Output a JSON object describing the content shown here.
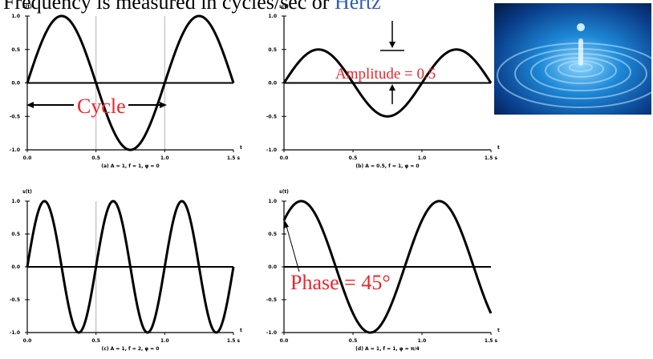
{
  "header": {
    "text_prefix": "Frequency is measured in cycles/sec or ",
    "text_hz": "Hertz"
  },
  "image": {
    "name": "water-droplet-ripples-photo"
  },
  "annotations": {
    "cycle": "Cycle",
    "amplitude": "Amplitude = 0.5",
    "phase": "Phase = 45°"
  },
  "chart_data": [
    {
      "type": "line",
      "panel": "a",
      "ylabel": "s(t)",
      "xlabel": "t",
      "caption": "(a) A = 1, f = 1, φ = 0",
      "amplitude": 1,
      "frequency": 1,
      "phase_deg": 0,
      "xlim": [
        0,
        1.5
      ],
      "ylim": [
        -1,
        1
      ],
      "xticks": [
        "0.0",
        "0.5",
        "1.0",
        "1.5 s"
      ],
      "yticks": [
        "1.0",
        "0.5",
        "0.0",
        "-0.5",
        "-1.0"
      ],
      "grid_x": [
        0.5,
        1.0
      ]
    },
    {
      "type": "line",
      "panel": "b",
      "ylabel": "s(t)",
      "xlabel": "t",
      "caption": "(b) A = 0.5, f = 1, φ = 0",
      "amplitude": 0.5,
      "frequency": 1,
      "phase_deg": 0,
      "xlim": [
        0,
        1.5
      ],
      "ylim": [
        -1,
        1
      ],
      "xticks": [
        "0.0",
        "0.5",
        "1.0",
        "1.5 s"
      ],
      "yticks": [
        "1.0",
        "0.5",
        "0.0",
        "-0.5",
        "-1.0"
      ],
      "grid_x": []
    },
    {
      "type": "line",
      "panel": "c",
      "ylabel": "s(t)",
      "xlabel": "t",
      "caption": "(c) A = 1, f = 2, φ = 0",
      "amplitude": 1,
      "frequency": 2,
      "phase_deg": 0,
      "xlim": [
        0,
        1.5
      ],
      "ylim": [
        -1,
        1
      ],
      "xticks": [
        "0.0",
        "0.5",
        "1.0",
        "1.5 s"
      ],
      "yticks": [
        "1.0",
        "0.5",
        "0.0",
        "-0.5",
        "-1.0"
      ],
      "grid_x": [
        0.5
      ]
    },
    {
      "type": "line",
      "panel": "d",
      "ylabel": "s(t)",
      "xlabel": "t",
      "caption": "(d) A = 1, f = 1, φ = π/4",
      "amplitude": 1,
      "frequency": 1,
      "phase_deg": 45,
      "xlim": [
        0,
        1.5
      ],
      "ylim": [
        -1,
        1
      ],
      "xticks": [
        "0.0",
        "0.5",
        "1.0",
        "1.5 s"
      ],
      "yticks": [
        "1.0",
        "0.5",
        "0.0",
        "-0.5",
        "-1.0"
      ],
      "grid_x": []
    }
  ]
}
